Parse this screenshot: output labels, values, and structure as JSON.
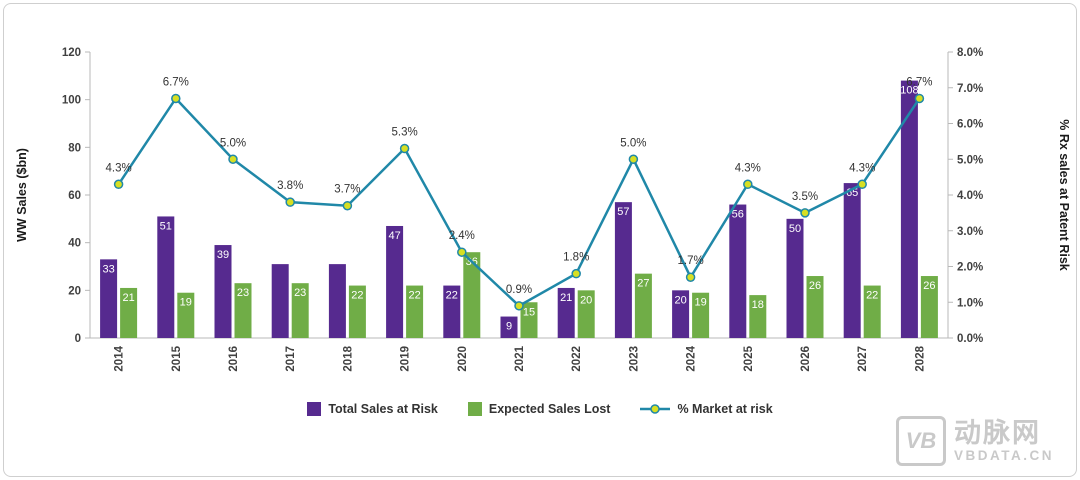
{
  "chart_data": {
    "type": "combo",
    "title": "",
    "categories": [
      "2014",
      "2015",
      "2016",
      "2017",
      "2018",
      "2019",
      "2020",
      "2021",
      "2022",
      "2023",
      "2024",
      "2025",
      "2026",
      "2027",
      "2028"
    ],
    "series": [
      {
        "name": "Total Sales at Risk",
        "type": "bar",
        "color": "#562a8f",
        "values": [
          33,
          51,
          39,
          31,
          31,
          47,
          22,
          9,
          21,
          57,
          20,
          56,
          50,
          65,
          108
        ],
        "labels": [
          "33",
          "51",
          "39",
          "",
          "",
          "47",
          "22",
          "9",
          "21",
          "57",
          "20",
          "56",
          "50",
          "65",
          "108"
        ]
      },
      {
        "name": "Expected Sales Lost",
        "type": "bar",
        "color": "#70ad47",
        "values": [
          21,
          19,
          23,
          23,
          22,
          22,
          36,
          15,
          20,
          27,
          19,
          18,
          26,
          22,
          26
        ],
        "labels": [
          "21",
          "19",
          "23",
          "23",
          "22",
          "22",
          "36",
          "15",
          "20",
          "27",
          "19",
          "18",
          "26",
          "22",
          "26"
        ]
      },
      {
        "name": "% Market at risk",
        "type": "line",
        "color": "#2088a8",
        "marker_fill": "#d7df23",
        "values": [
          4.3,
          6.7,
          5.0,
          3.8,
          3.7,
          5.3,
          2.4,
          0.9,
          1.8,
          5.0,
          1.7,
          4.3,
          3.5,
          4.3,
          6.7
        ],
        "labels": [
          "4.3%",
          "6.7%",
          "5.0%",
          "3.8%",
          "3.7%",
          "5.3%",
          "2.4%",
          "0.9%",
          "1.8%",
          "5.0%",
          "1.7%",
          "4.3%",
          "3.5%",
          "4.3%",
          "6.7%"
        ]
      }
    ],
    "left_axis": {
      "title": "WW Sales ($bn)",
      "min": 0,
      "max": 120,
      "step": 20,
      "ticks": [
        "0",
        "20",
        "40",
        "60",
        "80",
        "100",
        "120"
      ]
    },
    "right_axis": {
      "title": "% Rx sales at Patent Risk",
      "min": 0,
      "max": 8,
      "step": 1,
      "ticks": [
        "0.0%",
        "1.0%",
        "2.0%",
        "3.0%",
        "4.0%",
        "5.0%",
        "6.0%",
        "7.0%",
        "8.0%"
      ]
    },
    "grid": false,
    "legend_position": "bottom"
  },
  "watermark": {
    "logo": "VB",
    "name_cn": "动脉网",
    "site": "VBDATA.CN"
  }
}
